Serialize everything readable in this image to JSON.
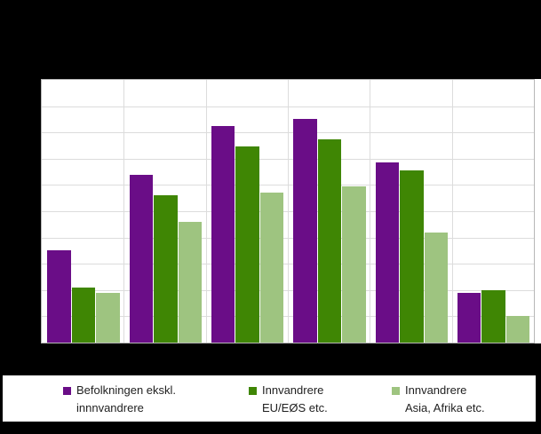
{
  "chart_data": {
    "type": "bar",
    "title": "",
    "xlabel": "",
    "ylabel": "",
    "categories": [
      "",
      "",
      "",
      "",
      "",
      ""
    ],
    "series": [
      {
        "name": "Befolkningen ekskl. innnvandrere",
        "color": "#6a0d87",
        "values": [
          35,
          64,
          82.5,
          85,
          68.5,
          19
        ]
      },
      {
        "name": "Innvandrere EU/EØS etc.",
        "color": "#3f8604",
        "values": [
          21,
          56,
          74.5,
          77.5,
          65.5,
          20
        ]
      },
      {
        "name": "Innvandrere Asia, Afrika etc.",
        "color": "#9ec480",
        "values": [
          19,
          46,
          57,
          59.5,
          42,
          10
        ]
      }
    ],
    "ylim": [
      0,
      100
    ],
    "y_gridline_step": 10,
    "x_group_count": 6,
    "grid": true,
    "legend_position": "bottom",
    "redacted_areas": [
      "title",
      "y_axis_tick_labels",
      "x_axis_tick_labels"
    ]
  },
  "legend": {
    "entries": [
      {
        "label_line1": "Befolkningen ekskl.",
        "label_line2": "innnvandrere",
        "color": "#6a0d87"
      },
      {
        "label_line1": "Innvandrere",
        "label_line2": "EU/EØS etc.",
        "color": "#3f8604"
      },
      {
        "label_line1": "Innvandrere",
        "label_line2": "Asia, Afrika etc.",
        "color": "#9ec480"
      }
    ]
  },
  "colors": {
    "purple": "#6a0d87",
    "dark_green": "#3f8604",
    "light_green": "#9ec480",
    "gridline": "#dcdcdc",
    "plot_border": "#b7b7b7",
    "plot_background": "#ffffff",
    "redaction": "#000000",
    "legend_text": "#1f1f1f"
  }
}
